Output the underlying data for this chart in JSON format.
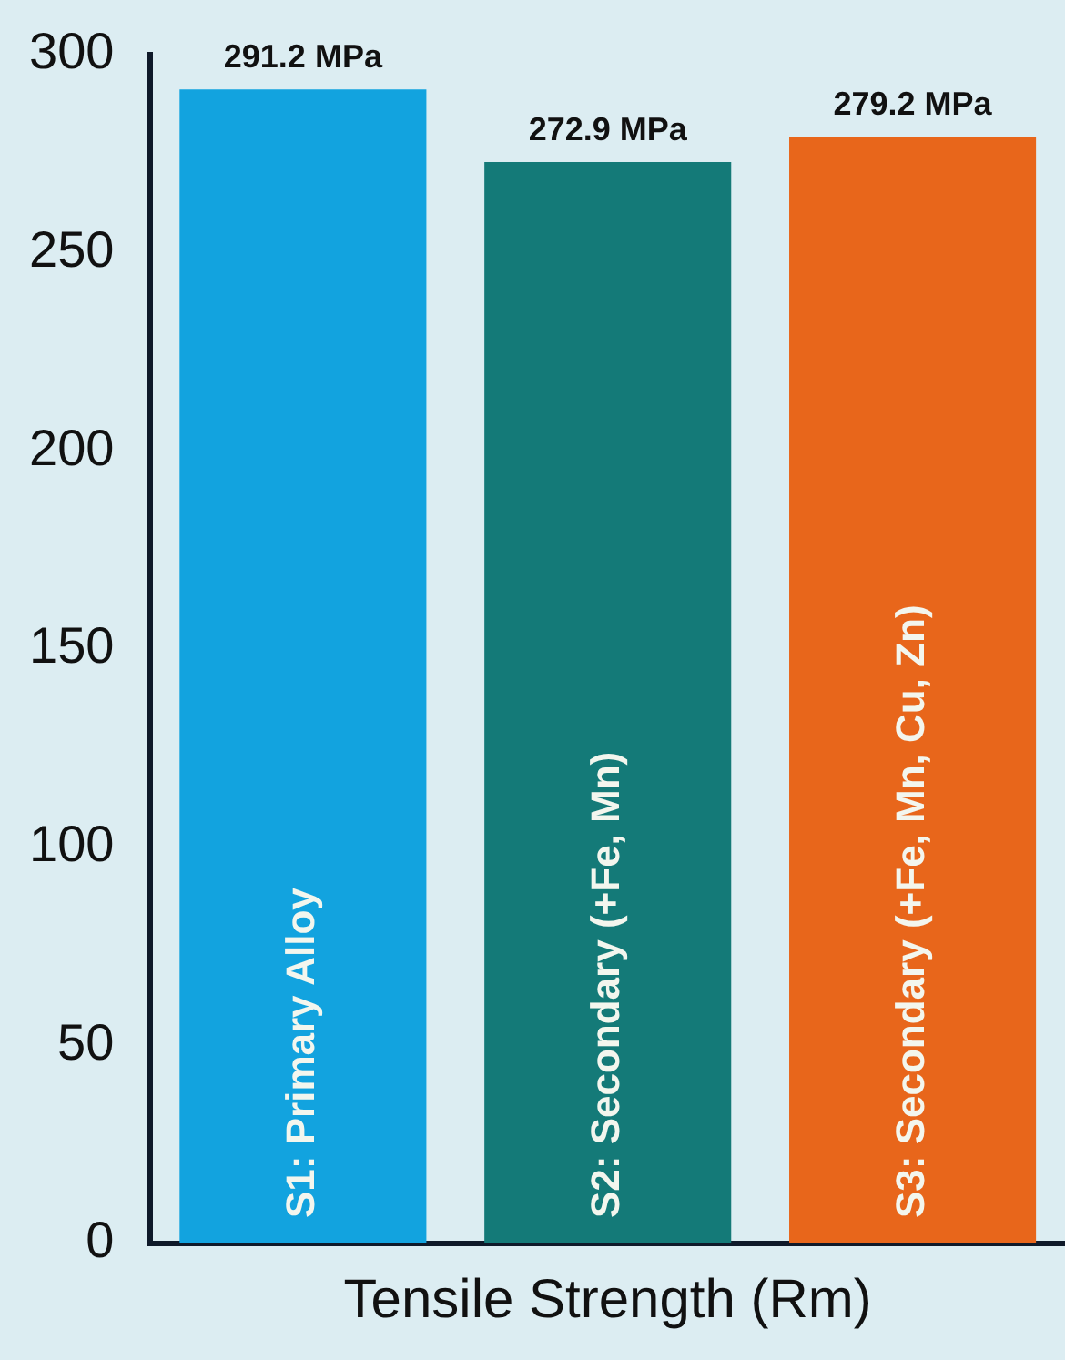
{
  "chart_data": {
    "type": "bar",
    "xlabel": "Tensile Strength (Rm)",
    "categories": [
      "S1: Primary Alloy",
      "S2: Secondary (+Fe, Mn)",
      "S3: Secondary (+Fe, Mn, Cu, Zn)"
    ],
    "values": [
      291.2,
      272.9,
      279.2
    ],
    "colors": [
      "#12a3df",
      "#147a78",
      "#e8661b"
    ],
    "value_labels": [
      "291.2 MPa",
      "272.9 MPa",
      "279.2 MPa"
    ],
    "ylim": [
      0,
      300
    ],
    "yticks": [
      0,
      50,
      100,
      150,
      200,
      250,
      300
    ],
    "grid": false,
    "legend": false
  }
}
